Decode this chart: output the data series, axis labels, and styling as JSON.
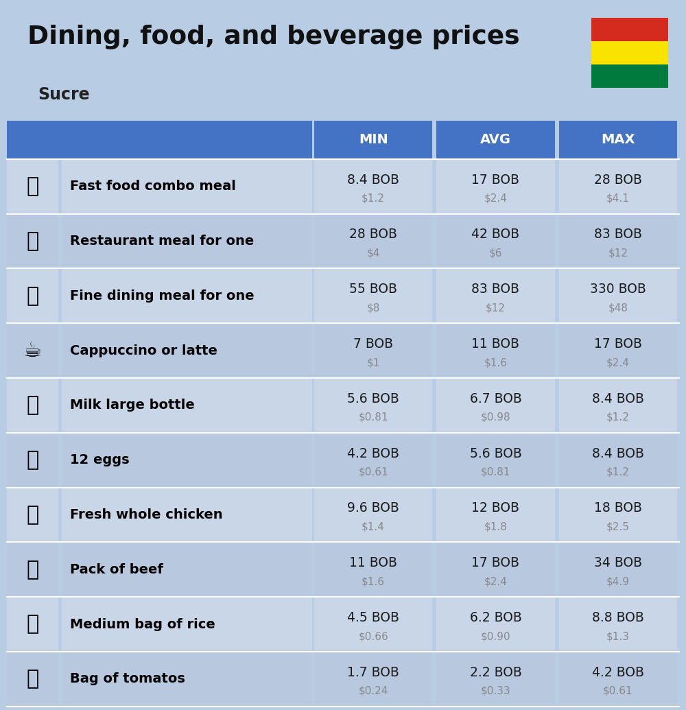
{
  "title": "Dining, food, and beverage prices",
  "subtitle": "Sucre",
  "header_bg": "#4472c4",
  "header_text_color": "#ffffff",
  "row_bg_odd": "#c9d6e8",
  "row_bg_even": "#b8c8df",
  "top_bg": "#b8cce4",
  "label_text_color": "#000000",
  "value_text_color": "#1a1a1a",
  "usd_text_color": "#888888",
  "col_headers": [
    "MIN",
    "AVG",
    "MAX"
  ],
  "rows": [
    {
      "label": "Fast food combo meal",
      "min_bob": "8.4 BOB",
      "min_usd": "$1.2",
      "avg_bob": "17 BOB",
      "avg_usd": "$2.4",
      "max_bob": "28 BOB",
      "max_usd": "$4.1"
    },
    {
      "label": "Restaurant meal for one",
      "min_bob": "28 BOB",
      "min_usd": "$4",
      "avg_bob": "42 BOB",
      "avg_usd": "$6",
      "max_bob": "83 BOB",
      "max_usd": "$12"
    },
    {
      "label": "Fine dining meal for one",
      "min_bob": "55 BOB",
      "min_usd": "$8",
      "avg_bob": "83 BOB",
      "avg_usd": "$12",
      "max_bob": "330 BOB",
      "max_usd": "$48"
    },
    {
      "label": "Cappuccino or latte",
      "min_bob": "7 BOB",
      "min_usd": "$1",
      "avg_bob": "11 BOB",
      "avg_usd": "$1.6",
      "max_bob": "17 BOB",
      "max_usd": "$2.4"
    },
    {
      "label": "Milk large bottle",
      "min_bob": "5.6 BOB",
      "min_usd": "$0.81",
      "avg_bob": "6.7 BOB",
      "avg_usd": "$0.98",
      "max_bob": "8.4 BOB",
      "max_usd": "$1.2"
    },
    {
      "label": "12 eggs",
      "min_bob": "4.2 BOB",
      "min_usd": "$0.61",
      "avg_bob": "5.6 BOB",
      "avg_usd": "$0.81",
      "max_bob": "8.4 BOB",
      "max_usd": "$1.2"
    },
    {
      "label": "Fresh whole chicken",
      "min_bob": "9.6 BOB",
      "min_usd": "$1.4",
      "avg_bob": "12 BOB",
      "avg_usd": "$1.8",
      "max_bob": "18 BOB",
      "max_usd": "$2.5"
    },
    {
      "label": "Pack of beef",
      "min_bob": "11 BOB",
      "min_usd": "$1.6",
      "avg_bob": "17 BOB",
      "avg_usd": "$2.4",
      "max_bob": "34 BOB",
      "max_usd": "$4.9"
    },
    {
      "label": "Medium bag of rice",
      "min_bob": "4.5 BOB",
      "min_usd": "$0.66",
      "avg_bob": "6.2 BOB",
      "avg_usd": "$0.90",
      "max_bob": "8.8 BOB",
      "max_usd": "$1.3"
    },
    {
      "label": "Bag of tomatos",
      "min_bob": "1.7 BOB",
      "min_usd": "$0.24",
      "avg_bob": "2.2 BOB",
      "avg_usd": "$0.33",
      "max_bob": "4.2 BOB",
      "max_usd": "$0.61"
    }
  ],
  "flag_colors": [
    "#d52b1e",
    "#f9e300",
    "#007a3d"
  ],
  "icon_texts": [
    "🍔",
    "🍳",
    "🍽",
    "☕",
    "🥛",
    "🥚",
    "🐔",
    "🥩",
    "🍚",
    "🍅"
  ]
}
